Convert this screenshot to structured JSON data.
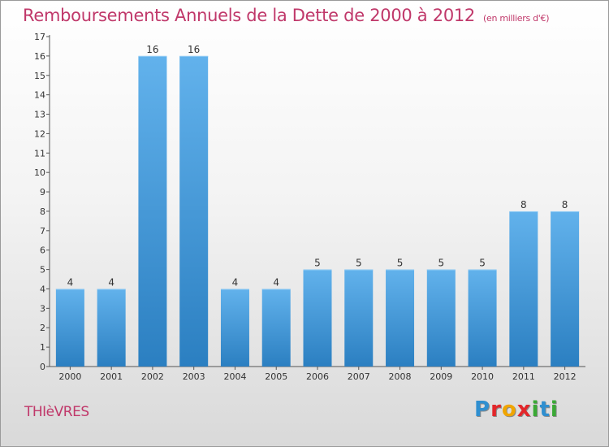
{
  "header": {
    "title": "Remboursements Annuels de la Dette de 2000 à 2012",
    "unit_note": "(en milliers d'€)"
  },
  "footer": {
    "commune": "THIèVRES",
    "logo_letters": [
      {
        "ch": "P",
        "color": "#2f8fd0"
      },
      {
        "ch": "r",
        "color": "#e3262a"
      },
      {
        "ch": "o",
        "color": "#f0a500"
      },
      {
        "ch": "x",
        "color": "#e3262a"
      },
      {
        "ch": "i",
        "color": "#3aa935"
      },
      {
        "ch": "t",
        "color": "#2f8fd0"
      },
      {
        "ch": "i",
        "color": "#3aa935"
      }
    ]
  },
  "colors": {
    "bar_light": "#62b2ec",
    "bar_dark": "#2b7fc1",
    "accent": "#c0386a"
  },
  "chart_data": {
    "type": "bar",
    "categories": [
      "2000",
      "2001",
      "2002",
      "2003",
      "2004",
      "2005",
      "2006",
      "2007",
      "2008",
      "2009",
      "2010",
      "2011",
      "2012"
    ],
    "values": [
      4,
      4,
      16,
      16,
      4,
      4,
      5,
      5,
      5,
      5,
      5,
      8,
      8
    ],
    "data_labels": [
      "4",
      "4",
      "16",
      "16",
      "4",
      "4",
      "5",
      "5",
      "5",
      "5",
      "5",
      "8",
      "8"
    ],
    "title": "Remboursements Annuels de la Dette de 2000 à 2012",
    "subtitle": "(en milliers d'€)",
    "xlabel": "",
    "ylabel": "",
    "ylim": [
      0,
      17
    ],
    "yticks": [
      0,
      1,
      2,
      3,
      4,
      5,
      6,
      7,
      8,
      9,
      10,
      11,
      12,
      13,
      14,
      15,
      16,
      17
    ],
    "grid": false,
    "legend": "none"
  }
}
